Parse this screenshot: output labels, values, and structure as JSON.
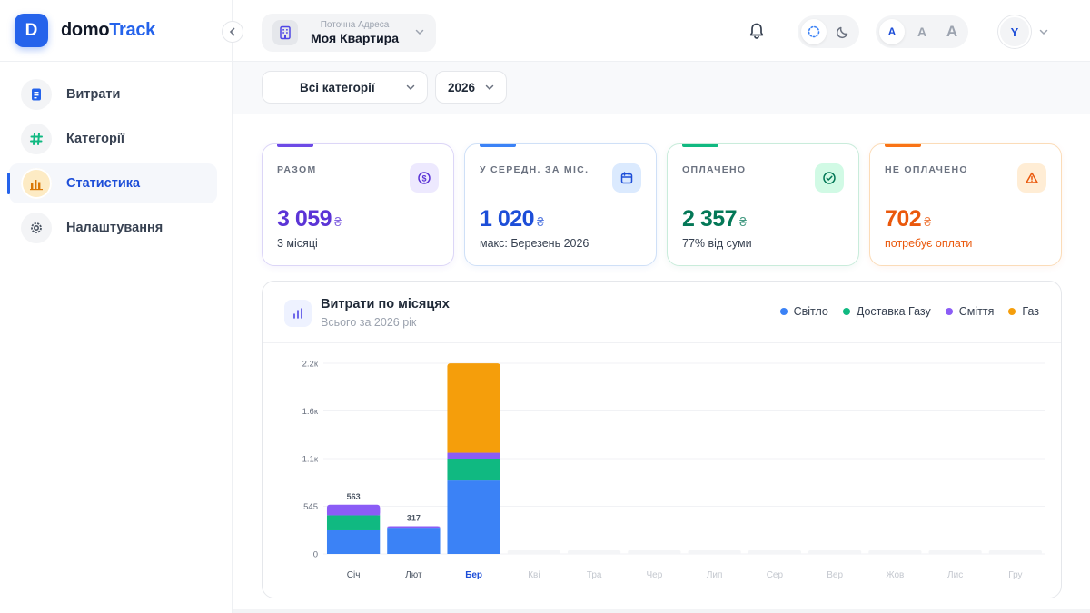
{
  "brand": {
    "logo_letter": "D",
    "name_part1": "domo",
    "name_part2": "Track"
  },
  "sidebar": {
    "items": [
      {
        "label": "Витрати",
        "icon": "document-icon",
        "active": false
      },
      {
        "label": "Категорії",
        "icon": "hashtag-icon",
        "active": false
      },
      {
        "label": "Статистика",
        "icon": "bar-chart-icon",
        "active": true
      },
      {
        "label": "Налаштування",
        "icon": "gear-icon",
        "active": false
      }
    ]
  },
  "header": {
    "address_caption": "Поточна Адреса",
    "address_value": "Моя Квартира",
    "font_sizes": [
      "A",
      "A",
      "A"
    ],
    "avatar_letter": "Y"
  },
  "filters": {
    "category": "Всі категорії",
    "year": "2026"
  },
  "cards": [
    {
      "title": "РАЗОМ",
      "value": "3 059",
      "currency": "₴",
      "sub": "3 місяці",
      "color": "#5b34d6",
      "icon": "dollar-circle-icon"
    },
    {
      "title": "У СЕРЕДН. ЗА МІС.",
      "value": "1 020",
      "currency": "₴",
      "sub": "макс: Березень 2026",
      "color": "#1d4ed8",
      "icon": "calendar-icon"
    },
    {
      "title": "ОПЛАЧЕНО",
      "value": "2 357",
      "currency": "₴",
      "sub": "77% від суми",
      "color": "#047857",
      "icon": "check-circle-icon"
    },
    {
      "title": "НЕ ОПЛАЧЕНО",
      "value": "702",
      "currency": "₴",
      "sub": "потребує оплати",
      "color": "#ea580c",
      "icon": "warning-icon"
    }
  ],
  "chart": {
    "title": "Витрати по місяцях",
    "subtitle": "Всього за 2026 рік",
    "legend": [
      {
        "name": "Світло",
        "color": "#3b82f6"
      },
      {
        "name": "Доставка Газу",
        "color": "#10b981"
      },
      {
        "name": "Сміття",
        "color": "#8b5cf6"
      },
      {
        "name": "Газ",
        "color": "#f59e0b"
      }
    ]
  },
  "chart_data": {
    "type": "bar",
    "stacked": true,
    "categories": [
      "Січ",
      "Лют",
      "Бер",
      "Кві",
      "Тра",
      "Чер",
      "Лип",
      "Сер",
      "Вер",
      "Жов",
      "Лис",
      "Гру"
    ],
    "highlight_category": "Бер",
    "series": [
      {
        "name": "Світло",
        "values": [
          270,
          300,
          840,
          0,
          0,
          0,
          0,
          0,
          0,
          0,
          0,
          0
        ]
      },
      {
        "name": "Доставка Газу",
        "values": [
          173,
          0,
          250,
          0,
          0,
          0,
          0,
          0,
          0,
          0,
          0,
          0
        ]
      },
      {
        "name": "Сміття",
        "values": [
          120,
          17,
          67,
          0,
          0,
          0,
          0,
          0,
          0,
          0,
          0,
          0
        ]
      },
      {
        "name": "Газ",
        "values": [
          0,
          0,
          1022,
          0,
          0,
          0,
          0,
          0,
          0,
          0,
          0,
          0
        ]
      }
    ],
    "totals_labels": [
      "563",
      "317",
      "",
      "",
      "",
      "",
      "",
      "",
      "",
      "",
      "",
      ""
    ],
    "yticks": [
      "0",
      "545",
      "1.1к",
      "1.6к",
      "2.2к"
    ],
    "ytick_values": [
      0,
      545,
      1090,
      1635,
      2180
    ],
    "ylim": [
      0,
      2180
    ],
    "grid": true
  }
}
